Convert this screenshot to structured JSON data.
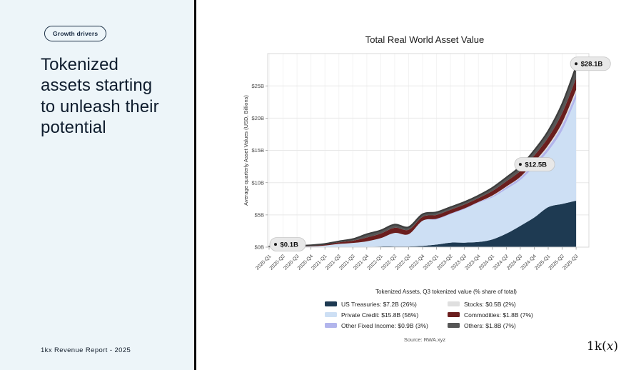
{
  "left_panel": {
    "badge": "Growth drivers",
    "heading": "Tokenized assets starting to unleash their potential",
    "footer": "1kx Revenue Report - 2025"
  },
  "logo": {
    "prefix": "1k(",
    "x_char": "x",
    "suffix": ")"
  },
  "theme": {
    "left_panel_bg": "#edf5f9",
    "divider": "#0a0a0a",
    "heading_color": "#0f1d2e",
    "badge_border": "#1b2f45",
    "annotation_bg": "#e8e8e8",
    "annotation_border": "#c4c4c4",
    "grid_h": "#e8e8e8",
    "grid_v": "#f3f3f3",
    "spine": "#d8d8d8",
    "tick": "#999999",
    "outline": "#3d3d3d"
  },
  "chart_data": {
    "type": "area",
    "stacked": true,
    "title": "Total Real World Asset Value",
    "ylabel": "Average quarterly Asset Values (USD, Billions)",
    "xlabel": "",
    "ylim": [
      0,
      30
    ],
    "grid": true,
    "legend_position": "bottom",
    "legend_title": "Tokenized Assets, Q3 tokenized value (% share of total)",
    "source": "Source: RWA.xyz",
    "y_ticks": [
      {
        "v": 0,
        "label": "$0B"
      },
      {
        "v": 5,
        "label": "$5B"
      },
      {
        "v": 10,
        "label": "$10B"
      },
      {
        "v": 15,
        "label": "$15B"
      },
      {
        "v": 20,
        "label": "$20B"
      },
      {
        "v": 25,
        "label": "$25B"
      }
    ],
    "categories": [
      "2020-Q1",
      "2020-Q2",
      "2020-Q3",
      "2020-Q4",
      "2021-Q1",
      "2021-Q2",
      "2021-Q3",
      "2021-Q4",
      "2022-Q1",
      "2022-Q2",
      "2022-Q3",
      "2022-Q4",
      "2023-Q1",
      "2023-Q2",
      "2023-Q3",
      "2023-Q4",
      "2024-Q1",
      "2024-Q2",
      "2024-Q3",
      "2024-Q4",
      "2025-Q1",
      "2025-Q2",
      "2025-Q3"
    ],
    "series": [
      {
        "name": "US Treasuries",
        "slug": "us-treasuries",
        "color": "#1e3a52",
        "legend_label": "US Treasuries: $7.2B (26%)",
        "values": [
          0,
          0,
          0,
          0,
          0,
          0,
          0.05,
          0.05,
          0.1,
          0.1,
          0.1,
          0.2,
          0.4,
          0.7,
          0.7,
          0.8,
          1.2,
          2.1,
          3.3,
          4.6,
          6.2,
          6.7,
          7.2
        ]
      },
      {
        "name": "Private Credit",
        "slug": "private-credit",
        "color": "#cddff4",
        "legend_label": "Private Credit: $15.8B (56%)",
        "values": [
          0.06,
          0.05,
          0.08,
          0.12,
          0.25,
          0.5,
          0.6,
          0.85,
          1.3,
          2.1,
          1.9,
          3.9,
          3.9,
          4.4,
          5.2,
          6.1,
          6.5,
          6.9,
          7.1,
          7.9,
          8.7,
          11.4,
          15.8
        ]
      },
      {
        "name": "Other Fixed Income",
        "slug": "other-fixed-income",
        "color": "#b2b5ec",
        "legend_label": "Other Fixed Income: $0.9B (3%)",
        "values": [
          0,
          0,
          0,
          0,
          0,
          0,
          0,
          0,
          0,
          0,
          0,
          0,
          0.1,
          0.1,
          0.1,
          0.1,
          0.2,
          0.3,
          0.4,
          0.5,
          0.6,
          0.8,
          0.9
        ]
      },
      {
        "name": "Stocks",
        "slug": "stocks",
        "color": "#dfdfdf",
        "legend_label": "Stocks: $0.5B (2%)",
        "values": [
          0,
          0,
          0,
          0,
          0,
          0,
          0,
          0,
          0,
          0,
          0,
          0,
          0,
          0,
          0,
          0,
          0.1,
          0.1,
          0.1,
          0.2,
          0.3,
          0.4,
          0.5
        ]
      },
      {
        "name": "Commodities",
        "slug": "commodities",
        "color": "#6b1e1e",
        "legend_label": "Commodities: $1.8B (7%)",
        "values": [
          0.02,
          0.03,
          0.07,
          0.1,
          0.15,
          0.25,
          0.35,
          0.6,
          0.7,
          0.8,
          0.7,
          0.6,
          0.6,
          0.6,
          0.6,
          0.6,
          0.7,
          0.8,
          0.9,
          1.0,
          1.2,
          1.5,
          1.8
        ]
      },
      {
        "name": "Others",
        "slug": "others",
        "color": "#565656",
        "legend_label": "Others: $1.8B (7%)",
        "values": [
          0.02,
          0.02,
          0.05,
          0.08,
          0.1,
          0.15,
          0.25,
          0.5,
          0.5,
          0.5,
          0.4,
          0.4,
          0.4,
          0.4,
          0.4,
          0.4,
          0.5,
          0.6,
          0.7,
          0.8,
          1.0,
          1.4,
          1.8
        ]
      }
    ],
    "annotations": [
      {
        "x": "2020-Q1",
        "value": 0.1,
        "label": "$0.1B"
      },
      {
        "x": "2024-Q3",
        "value": 12.5,
        "label": "$12.5B"
      },
      {
        "x": "2025-Q3",
        "value": 28.1,
        "label": "$28.1B"
      }
    ]
  }
}
